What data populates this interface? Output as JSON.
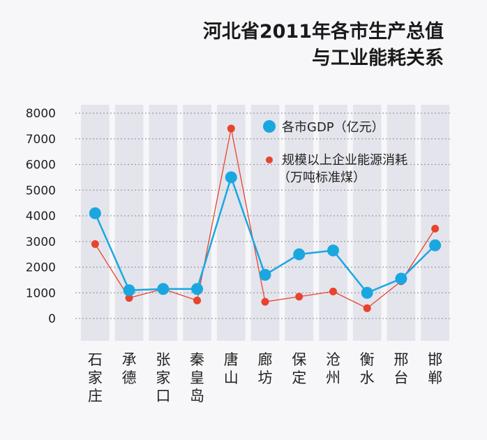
{
  "title_lines": [
    "河北省2011年各市生产总值",
    "与工业能耗关系"
  ],
  "chart_data": {
    "type": "line",
    "title": "河北省2011年各市生产总值与工业能耗关系",
    "categories": [
      [
        "石",
        "家",
        "庄"
      ],
      [
        "承",
        "德"
      ],
      [
        "张",
        "家",
        "口"
      ],
      [
        "秦",
        "皇",
        "岛"
      ],
      [
        "唐",
        "山"
      ],
      [
        "廊",
        "坊"
      ],
      [
        "保",
        "定"
      ],
      [
        "沧",
        "州"
      ],
      [
        "衡",
        "水"
      ],
      [
        "邢",
        "台"
      ],
      [
        "邯",
        "郸"
      ]
    ],
    "y_ticks": [
      "8000",
      "7000",
      "6000",
      "5000",
      "4000",
      "3000",
      "2000",
      "1000",
      "0"
    ],
    "ylim": [
      0,
      8000
    ],
    "grid": "dotted horizontal",
    "legend_position": "top-right",
    "series": [
      {
        "name": "各市GDP（亿元）",
        "color": "#1aa7e0",
        "values": [
          4100,
          1100,
          1150,
          1150,
          5500,
          1700,
          2500,
          2650,
          1000,
          1550,
          2850
        ]
      },
      {
        "name_lines": [
          "规模以上企业能源消耗",
          "（万吨标准煤）"
        ],
        "color": "#e8432d",
        "values": [
          2900,
          800,
          1150,
          700,
          7400,
          650,
          850,
          1050,
          400,
          1450,
          3500
        ]
      }
    ]
  }
}
